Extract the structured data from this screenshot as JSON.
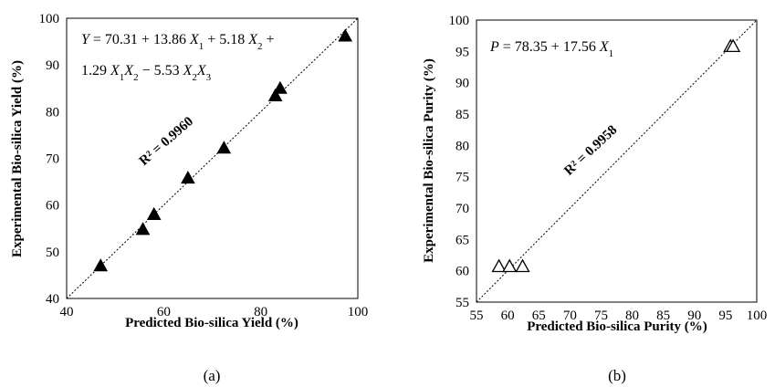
{
  "chart_data": [
    {
      "type": "scatter",
      "panel_label": "(a)",
      "xlabel": "Predicted Bio-silica Yield (%)",
      "ylabel": "Experimental Bio-silica Yield (%)",
      "xlim": [
        40,
        100
      ],
      "ylim": [
        40,
        100
      ],
      "xticks": [
        40,
        60,
        80,
        100
      ],
      "yticks": [
        40,
        50,
        60,
        70,
        80,
        90,
        100
      ],
      "marker": "filled-triangle",
      "points": [
        {
          "x": 47.0,
          "y": 47.0
        },
        {
          "x": 55.7,
          "y": 54.8
        },
        {
          "x": 58.0,
          "y": 58.0
        },
        {
          "x": 65.0,
          "y": 65.8
        },
        {
          "x": 72.4,
          "y": 72.2
        },
        {
          "x": 83.0,
          "y": 83.4
        },
        {
          "x": 84.0,
          "y": 85.0
        },
        {
          "x": 97.4,
          "y": 96.2
        }
      ],
      "fit_line": {
        "style": "dotted",
        "from": [
          40,
          40
        ],
        "to": [
          100,
          100
        ]
      },
      "r2_label": "R² = 0.9960",
      "equation_line1": [
        {
          "t": "Y",
          "i": true
        },
        {
          "t": " = 70.31 + 13.86 "
        },
        {
          "t": "X",
          "i": true
        },
        {
          "t": "1",
          "sub": true
        },
        {
          "t": " + 5.18 "
        },
        {
          "t": "X",
          "i": true
        },
        {
          "t": "2",
          "sub": true
        },
        {
          "t": " +"
        }
      ],
      "equation_line2": [
        {
          "t": "1.29 "
        },
        {
          "t": "X",
          "i": true
        },
        {
          "t": "1",
          "sub": true
        },
        {
          "t": "X",
          "i": true
        },
        {
          "t": "2",
          "sub": true
        },
        {
          "t": " − 5.53 "
        },
        {
          "t": "X",
          "i": true
        },
        {
          "t": "2",
          "sub": true
        },
        {
          "t": "X",
          "i": true
        },
        {
          "t": "3",
          "sub": true
        }
      ]
    },
    {
      "type": "scatter",
      "panel_label": "(b)",
      "xlabel": "Predicted Bio-silica Purity (%)",
      "ylabel": "Experimental Bio-silica Purity (%)",
      "xlim": [
        55,
        100
      ],
      "ylim": [
        55,
        100
      ],
      "xticks": [
        55,
        60,
        65,
        70,
        75,
        80,
        85,
        90,
        95,
        100
      ],
      "yticks": [
        55,
        60,
        65,
        70,
        75,
        80,
        85,
        90,
        95,
        100
      ],
      "marker": "open-triangle",
      "points": [
        {
          "x": 58.6,
          "y": 60.7
        },
        {
          "x": 60.3,
          "y": 60.7
        },
        {
          "x": 62.4,
          "y": 60.7
        },
        {
          "x": 95.8,
          "y": 95.8
        },
        {
          "x": 96.2,
          "y": 95.8
        }
      ],
      "fit_line": {
        "style": "dotted",
        "from": [
          55,
          55
        ],
        "to": [
          100,
          100
        ]
      },
      "r2_label": "R² = 0.9958",
      "equation_line1": [
        {
          "t": "P",
          "i": true
        },
        {
          "t": " = 78.35 + 17.56 "
        },
        {
          "t": "X",
          "i": true
        },
        {
          "t": "1",
          "sub": true
        }
      ]
    }
  ]
}
